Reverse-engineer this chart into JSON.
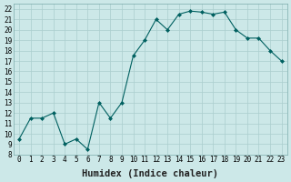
{
  "x": [
    0,
    1,
    2,
    3,
    4,
    5,
    6,
    7,
    8,
    9,
    10,
    11,
    12,
    13,
    14,
    15,
    16,
    17,
    18,
    19,
    20,
    21,
    22,
    23
  ],
  "y": [
    9.5,
    11.5,
    11.5,
    12.0,
    9.0,
    9.5,
    8.5,
    13.0,
    11.5,
    13.0,
    17.5,
    19.0,
    21.0,
    20.0,
    21.5,
    21.8,
    21.7,
    21.5,
    21.7,
    20.0,
    19.2,
    19.2,
    18.0,
    17.0
  ],
  "line_color": "#006060",
  "marker": "D",
  "marker_size": 2.0,
  "bg_color": "#cce8e8",
  "grid_color": "#aacece",
  "xlabel": "Humidex (Indice chaleur)",
  "ylim": [
    8,
    22.5
  ],
  "xlim": [
    -0.5,
    23.5
  ],
  "yticks": [
    8,
    9,
    10,
    11,
    12,
    13,
    14,
    15,
    16,
    17,
    18,
    19,
    20,
    21,
    22
  ],
  "xticks": [
    0,
    1,
    2,
    3,
    4,
    5,
    6,
    7,
    8,
    9,
    10,
    11,
    12,
    13,
    14,
    15,
    16,
    17,
    18,
    19,
    20,
    21,
    22,
    23
  ],
  "tick_label_fontsize": 5.5,
  "xlabel_fontsize": 7.5,
  "xlabel_fontweight": "bold"
}
